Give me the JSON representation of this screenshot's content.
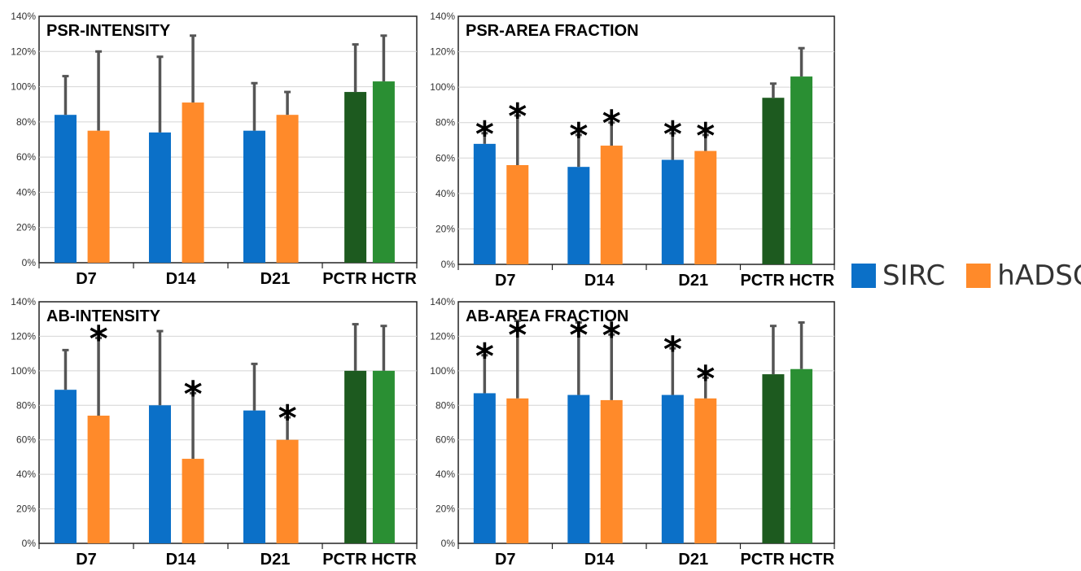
{
  "colors": {
    "sirc": "#0b70c8",
    "hadsc": "#ff8a2a",
    "pctr": "#1d5a1f",
    "hctr": "#2a8f33",
    "error_bar": "#555555"
  },
  "legend": {
    "placement": "right",
    "items": [
      {
        "label": "SIRC",
        "color": "#0b70c8"
      },
      {
        "label": "hADSC",
        "color": "#ff8a2a"
      }
    ]
  },
  "chart_data": [
    {
      "type": "bar",
      "title": "PSR-INTENSITY",
      "categories": [
        "D7",
        "D14",
        "D21",
        "PCTR HCTR"
      ],
      "y_ticks": [
        "0%",
        "20%",
        "40%",
        "60%",
        "80%",
        "100%",
        "120%",
        "140%"
      ],
      "ylim": [
        0,
        140
      ],
      "grid": true,
      "series": [
        {
          "name": "SIRC",
          "values": [
            84,
            74,
            75,
            null
          ],
          "errors": [
            22,
            43,
            27,
            null
          ]
        },
        {
          "name": "hADSC",
          "values": [
            75,
            91,
            84,
            null
          ],
          "errors": [
            45,
            38,
            13,
            null
          ]
        }
      ],
      "controls": [
        {
          "value": 97,
          "error": 27
        },
        {
          "value": 103,
          "error": 26
        }
      ],
      "significance": [
        [
          false,
          false
        ],
        [
          false,
          false
        ],
        [
          false,
          false
        ]
      ],
      "significance_symbol": "*"
    },
    {
      "type": "bar",
      "title": "PSR-AREA FRACTION",
      "categories": [
        "D7",
        "D14",
        "D21",
        "PCTR HCTR"
      ],
      "y_ticks": [
        "0%",
        "20%",
        "40%",
        "60%",
        "80%",
        "100%",
        "120%",
        "140%"
      ],
      "ylim": [
        0,
        140
      ],
      "grid": true,
      "series": [
        {
          "name": "SIRC",
          "values": [
            68,
            55,
            59,
            null
          ],
          "errors": [
            6,
            18,
            15,
            null
          ]
        },
        {
          "name": "hADSC",
          "values": [
            56,
            67,
            64,
            null
          ],
          "errors": [
            28,
            13,
            9,
            null
          ]
        }
      ],
      "controls": [
        {
          "value": 94,
          "error": 8
        },
        {
          "value": 106,
          "error": 16
        }
      ],
      "significance": [
        [
          true,
          true
        ],
        [
          true,
          true
        ],
        [
          true,
          true
        ]
      ],
      "significance_symbol": "*"
    },
    {
      "type": "bar",
      "title": "AB-INTENSITY",
      "categories": [
        "D7",
        "D14",
        "D21",
        "PCTR HCTR"
      ],
      "y_ticks": [
        "0%",
        "20%",
        "40%",
        "60%",
        "80%",
        "100%",
        "120%",
        "140%"
      ],
      "ylim": [
        0,
        140
      ],
      "grid": true,
      "series": [
        {
          "name": "SIRC",
          "values": [
            89,
            80,
            77,
            null
          ],
          "errors": [
            23,
            43,
            27,
            null
          ]
        },
        {
          "name": "hADSC",
          "values": [
            74,
            49,
            60,
            null
          ],
          "errors": [
            45,
            38,
            13,
            null
          ]
        }
      ],
      "controls": [
        {
          "value": 100,
          "error": 27
        },
        {
          "value": 100,
          "error": 26
        }
      ],
      "significance": [
        [
          false,
          true
        ],
        [
          false,
          true
        ],
        [
          false,
          true
        ]
      ],
      "significance_symbol": "*"
    },
    {
      "type": "bar",
      "title": "AB-AREA FRACTION",
      "categories": [
        "D7",
        "D14",
        "D21",
        "PCTR HCTR"
      ],
      "y_ticks": [
        "0%",
        "20%",
        "40%",
        "60%",
        "80%",
        "100%",
        "120%",
        "140%"
      ],
      "ylim": [
        0,
        140
      ],
      "grid": true,
      "series": [
        {
          "name": "SIRC",
          "values": [
            87,
            86,
            86,
            null
          ],
          "errors": [
            22,
            42,
            27,
            null
          ]
        },
        {
          "name": "hADSC",
          "values": [
            84,
            83,
            84,
            null
          ],
          "errors": [
            45,
            38,
            12,
            null
          ]
        }
      ],
      "controls": [
        {
          "value": 98,
          "error": 28
        },
        {
          "value": 101,
          "error": 27
        }
      ],
      "significance": [
        [
          true,
          true
        ],
        [
          true,
          true
        ],
        [
          true,
          true
        ]
      ],
      "significance_symbol": "*"
    }
  ]
}
